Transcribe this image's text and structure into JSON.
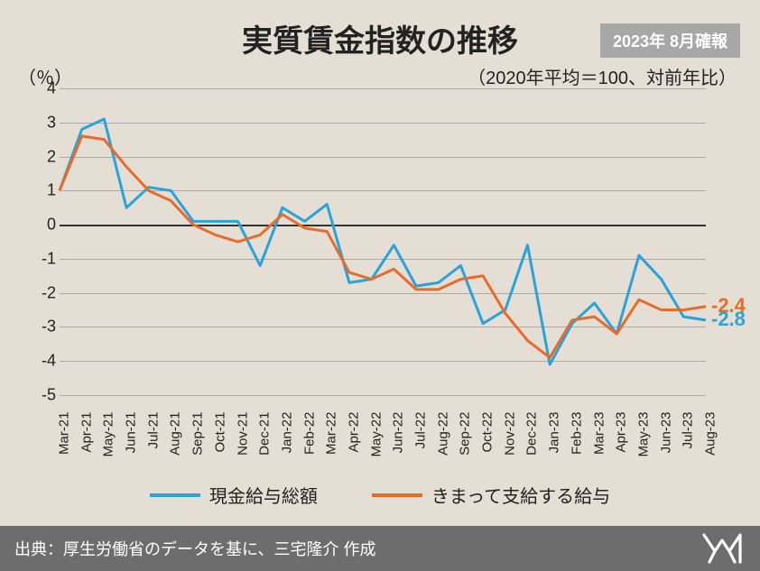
{
  "title": "実質賃金指数の推移",
  "badge": "2023年 8月確報",
  "subtitle": "（2020年平均＝100、対前年比）",
  "ylabel": "（％）",
  "source": "出典：厚生労働省のデータを基に、三宅隆介 作成",
  "chart": {
    "type": "line",
    "background_color": "#e5ded4",
    "grid_color": "#aaaaaa",
    "zero_color": "#333333",
    "ylim": [
      -5,
      4
    ],
    "yticks": [
      4,
      3,
      2,
      1,
      0,
      -1,
      -2,
      -3,
      -4,
      -5
    ],
    "x_labels": [
      "Mar-21",
      "Apr-21",
      "May-21",
      "Jun-21",
      "Jul-21",
      "Aug-21",
      "Sep-21",
      "Oct-21",
      "Nov-21",
      "Dec-21",
      "Jan-22",
      "Feb-22",
      "Mar-22",
      "Apr-22",
      "May-22",
      "Jun-22",
      "Jul-22",
      "Aug-22",
      "Sep-22",
      "Oct-22",
      "Nov-22",
      "Dec-22",
      "Jan-23",
      "Feb-23",
      "Mar-23",
      "Apr-23",
      "May-23",
      "Jun-23",
      "Jul-23",
      "Aug-23"
    ],
    "line_width": 3,
    "label_fontsize": 18,
    "xtick_fontsize": 15,
    "xtick_rotation": -90,
    "series": [
      {
        "name": "現金給与総額",
        "color": "#2aa3d9",
        "values": [
          1.0,
          2.8,
          3.1,
          0.5,
          1.1,
          1.0,
          0.1,
          0.1,
          0.1,
          -1.2,
          0.5,
          0.1,
          0.6,
          -1.7,
          -1.6,
          -0.6,
          -1.8,
          -1.7,
          -1.2,
          -2.9,
          -2.5,
          -0.6,
          -4.1,
          -2.9,
          -2.3,
          -3.2,
          -0.9,
          -1.6,
          -2.7,
          -2.8
        ],
        "end_label": "-2.8"
      },
      {
        "name": "きまって支給する給与",
        "color": "#e86b2a",
        "values": [
          1.0,
          2.6,
          2.5,
          1.7,
          1.0,
          0.7,
          0.0,
          -0.3,
          -0.5,
          -0.3,
          0.3,
          -0.1,
          -0.2,
          -1.4,
          -1.6,
          -1.3,
          -1.9,
          -1.9,
          -1.6,
          -1.5,
          -2.6,
          -3.4,
          -3.9,
          -2.8,
          -2.7,
          -3.2,
          -2.2,
          -2.5,
          -2.5,
          -2.4
        ],
        "end_label": "-2.4"
      }
    ]
  },
  "footer_bg": "#6d6d6d"
}
